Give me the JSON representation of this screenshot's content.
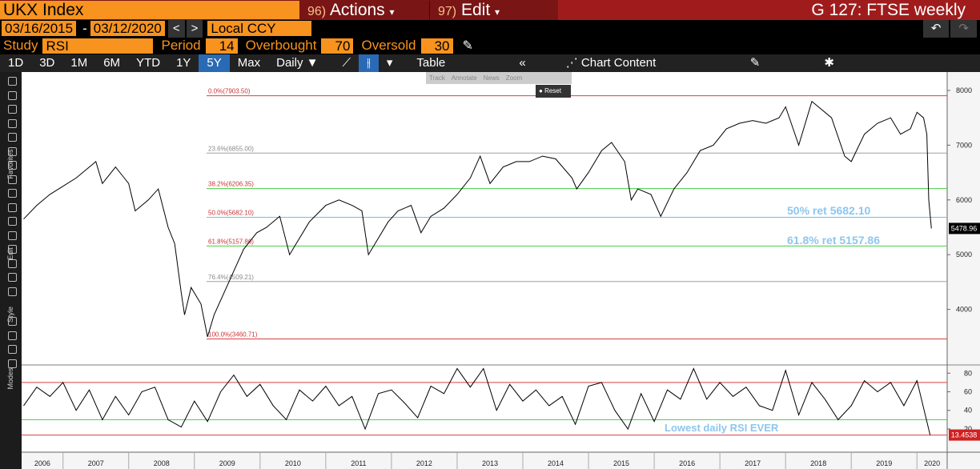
{
  "header": {
    "security": "UKX Index",
    "actions_num": "96)",
    "actions": "Actions",
    "edit_num": "97)",
    "edit": "Edit",
    "page_title": "G 127: FTSE weekly"
  },
  "dates": {
    "start": "03/16/2015",
    "separator": "-",
    "end": "03/12/2020",
    "currency": "Local CCY"
  },
  "study": {
    "study_label": "Study",
    "study": "RSI",
    "period_label": "Period",
    "period": 14,
    "overbought_label": "Overbought",
    "overbought": 70,
    "oversold_label": "Oversold",
    "oversold": 30
  },
  "toolbar": {
    "ranges": [
      "1D",
      "3D",
      "1M",
      "6M",
      "YTD",
      "1Y",
      "5Y",
      "Max"
    ],
    "frequency": "Daily",
    "table": "Table",
    "chart_content": "Chart Content"
  },
  "popup": {
    "track": "Track",
    "annotate": "Annotate",
    "news": "News",
    "zoom": "Zoom",
    "reset": "Reset"
  },
  "sidebar": {
    "favorites": "Favorites",
    "edit": "Edit",
    "style": "Style",
    "modes": "Modes"
  },
  "chart_data": [
    {
      "type": "line",
      "color": "#000000",
      "xlim": [
        2006.37,
        2020.46
      ],
      "ylim": [
        3000,
        8336
      ],
      "yticks": [
        4000,
        5000,
        6000,
        7000,
        8000
      ],
      "x": [
        2006.4,
        2006.6,
        2006.8,
        2007.0,
        2007.2,
        2007.4,
        2007.5,
        2007.6,
        2007.8,
        2007.9,
        2008.0,
        2008.1,
        2008.3,
        2008.45,
        2008.6,
        2008.7,
        2008.8,
        2008.85,
        2008.95,
        2009.1,
        2009.2,
        2009.3,
        2009.45,
        2009.6,
        2009.75,
        2009.95,
        2010.1,
        2010.3,
        2010.45,
        2010.55,
        2010.75,
        2011.0,
        2011.2,
        2011.4,
        2011.55,
        2011.65,
        2011.75,
        2011.95,
        2012.1,
        2012.3,
        2012.45,
        2012.6,
        2012.8,
        2013.0,
        2013.2,
        2013.35,
        2013.5,
        2013.7,
        2013.9,
        2014.1,
        2014.3,
        2014.5,
        2014.75,
        2014.82,
        2015.0,
        2015.2,
        2015.35,
        2015.55,
        2015.65,
        2015.75,
        2015.95,
        2016.1,
        2016.3,
        2016.5,
        2016.7,
        2016.9,
        2017.1,
        2017.3,
        2017.5,
        2017.7,
        2017.9,
        2018.0,
        2018.2,
        2018.4,
        2018.5,
        2018.7,
        2018.9,
        2019.0,
        2019.2,
        2019.4,
        2019.6,
        2019.75,
        2019.9,
        2020.0,
        2020.1,
        2020.15,
        2020.18,
        2020.22
      ],
      "values": [
        5650,
        5900,
        6100,
        6250,
        6400,
        6600,
        6700,
        6300,
        6600,
        6450,
        6300,
        5800,
        6000,
        6200,
        5500,
        5200,
        4300,
        3900,
        4400,
        4100,
        3500,
        3900,
        4300,
        4700,
        5100,
        5400,
        5500,
        5700,
        5000,
        5200,
        5600,
        5900,
        6000,
        5900,
        5800,
        5000,
        5200,
        5600,
        5800,
        5900,
        5400,
        5700,
        5850,
        6100,
        6400,
        6800,
        6300,
        6600,
        6700,
        6700,
        6800,
        6750,
        6400,
        6200,
        6500,
        6900,
        7050,
        6700,
        6000,
        6200,
        6100,
        5700,
        6200,
        6500,
        6900,
        7000,
        7300,
        7400,
        7450,
        7400,
        7500,
        7700,
        7000,
        7800,
        7700,
        7500,
        6800,
        6700,
        7200,
        7400,
        7500,
        7200,
        7300,
        7600,
        7500,
        7200,
        6000,
        5478.96
      ],
      "fib_levels": [
        {
          "label": "0.0%(7903.50)",
          "value": 7903.5,
          "color": "#d94040"
        },
        {
          "label": "23.6%(6855.00)",
          "value": 6855,
          "color": "#a0a0a0"
        },
        {
          "label": "38.2%(6206.35)",
          "value": 6206.35,
          "color": "#44cc44"
        },
        {
          "label": "50.0%(5682.10)",
          "value": 5682.1,
          "color": "#55ccee"
        },
        {
          "label": "61.8%(5157.86)",
          "value": 5157.86,
          "color": "#44cc44"
        },
        {
          "label": "76.4%(4509.21)",
          "value": 4509.21,
          "color": "#a0a0a0"
        },
        {
          "label": "100.0%(3460.71)",
          "value": 3460.71,
          "color": "#d94040"
        }
      ],
      "annotations": [
        "50% ret 5682.10",
        "61.8% ret 5157.86"
      ]
    },
    {
      "type": "line",
      "color": "#000000",
      "xlim": [
        2006.37,
        2020.46
      ],
      "ylim": [
        -5,
        88
      ],
      "yticks": [
        20,
        40,
        60,
        80
      ],
      "xticks": [
        2006,
        2007,
        2008,
        2009,
        2010,
        2011,
        2012,
        2013,
        2014,
        2015,
        2016,
        2017,
        2018,
        2019,
        2020
      ],
      "x": [
        2006.4,
        2006.6,
        2006.8,
        2007.0,
        2007.2,
        2007.4,
        2007.6,
        2007.8,
        2008.0,
        2008.2,
        2008.4,
        2008.6,
        2008.8,
        2009.0,
        2009.2,
        2009.4,
        2009.6,
        2009.8,
        2010.0,
        2010.2,
        2010.4,
        2010.6,
        2010.8,
        2011.0,
        2011.2,
        2011.4,
        2011.6,
        2011.8,
        2012.0,
        2012.2,
        2012.4,
        2012.6,
        2012.8,
        2013.0,
        2013.2,
        2013.4,
        2013.6,
        2013.8,
        2014.0,
        2014.2,
        2014.4,
        2014.6,
        2014.8,
        2015.0,
        2015.2,
        2015.4,
        2015.6,
        2015.8,
        2016.0,
        2016.2,
        2016.4,
        2016.6,
        2016.8,
        2017.0,
        2017.2,
        2017.4,
        2017.6,
        2017.8,
        2018.0,
        2018.2,
        2018.4,
        2018.6,
        2018.8,
        2019.0,
        2019.2,
        2019.4,
        2019.6,
        2019.8,
        2020.0,
        2020.2
      ],
      "values": [
        45,
        65,
        55,
        70,
        40,
        62,
        30,
        55,
        35,
        60,
        65,
        30,
        22,
        50,
        28,
        60,
        78,
        55,
        68,
        45,
        30,
        62,
        50,
        66,
        45,
        55,
        20,
        58,
        62,
        48,
        32,
        66,
        58,
        85,
        65,
        85,
        40,
        68,
        50,
        62,
        45,
        55,
        25,
        66,
        70,
        40,
        20,
        58,
        28,
        62,
        52,
        85,
        52,
        70,
        55,
        65,
        45,
        40,
        83,
        35,
        70,
        52,
        30,
        45,
        72,
        60,
        70,
        45,
        72,
        13.4538
      ],
      "annotations": [
        "Lowest daily RSI EVER"
      ]
    }
  ]
}
